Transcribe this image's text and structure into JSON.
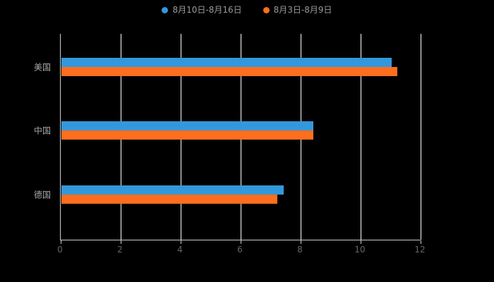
{
  "chart_data": {
    "type": "bar",
    "orientation": "horizontal",
    "title": "",
    "categories": [
      "美国",
      "中国",
      "德国"
    ],
    "series": [
      {
        "name": "8月10日-8月16日",
        "color": "#3398DB",
        "values": [
          11.0,
          8.4,
          7.4
        ]
      },
      {
        "name": "8月3日-8月9日",
        "color": "#FF6E1E",
        "values": [
          11.2,
          8.4,
          7.2
        ]
      }
    ],
    "xlim": [
      0,
      12
    ],
    "xticks": [
      0,
      2,
      4,
      6,
      8,
      10,
      12
    ],
    "grid": true,
    "legend_position": "top",
    "background_color": "#000000",
    "gridline_color": "#ffffff",
    "axis_line_color": "#cccccc",
    "axis_label_color": "#666666",
    "category_label_color": "#aaaaaa",
    "legend_text_color": "#9a9a9a"
  }
}
